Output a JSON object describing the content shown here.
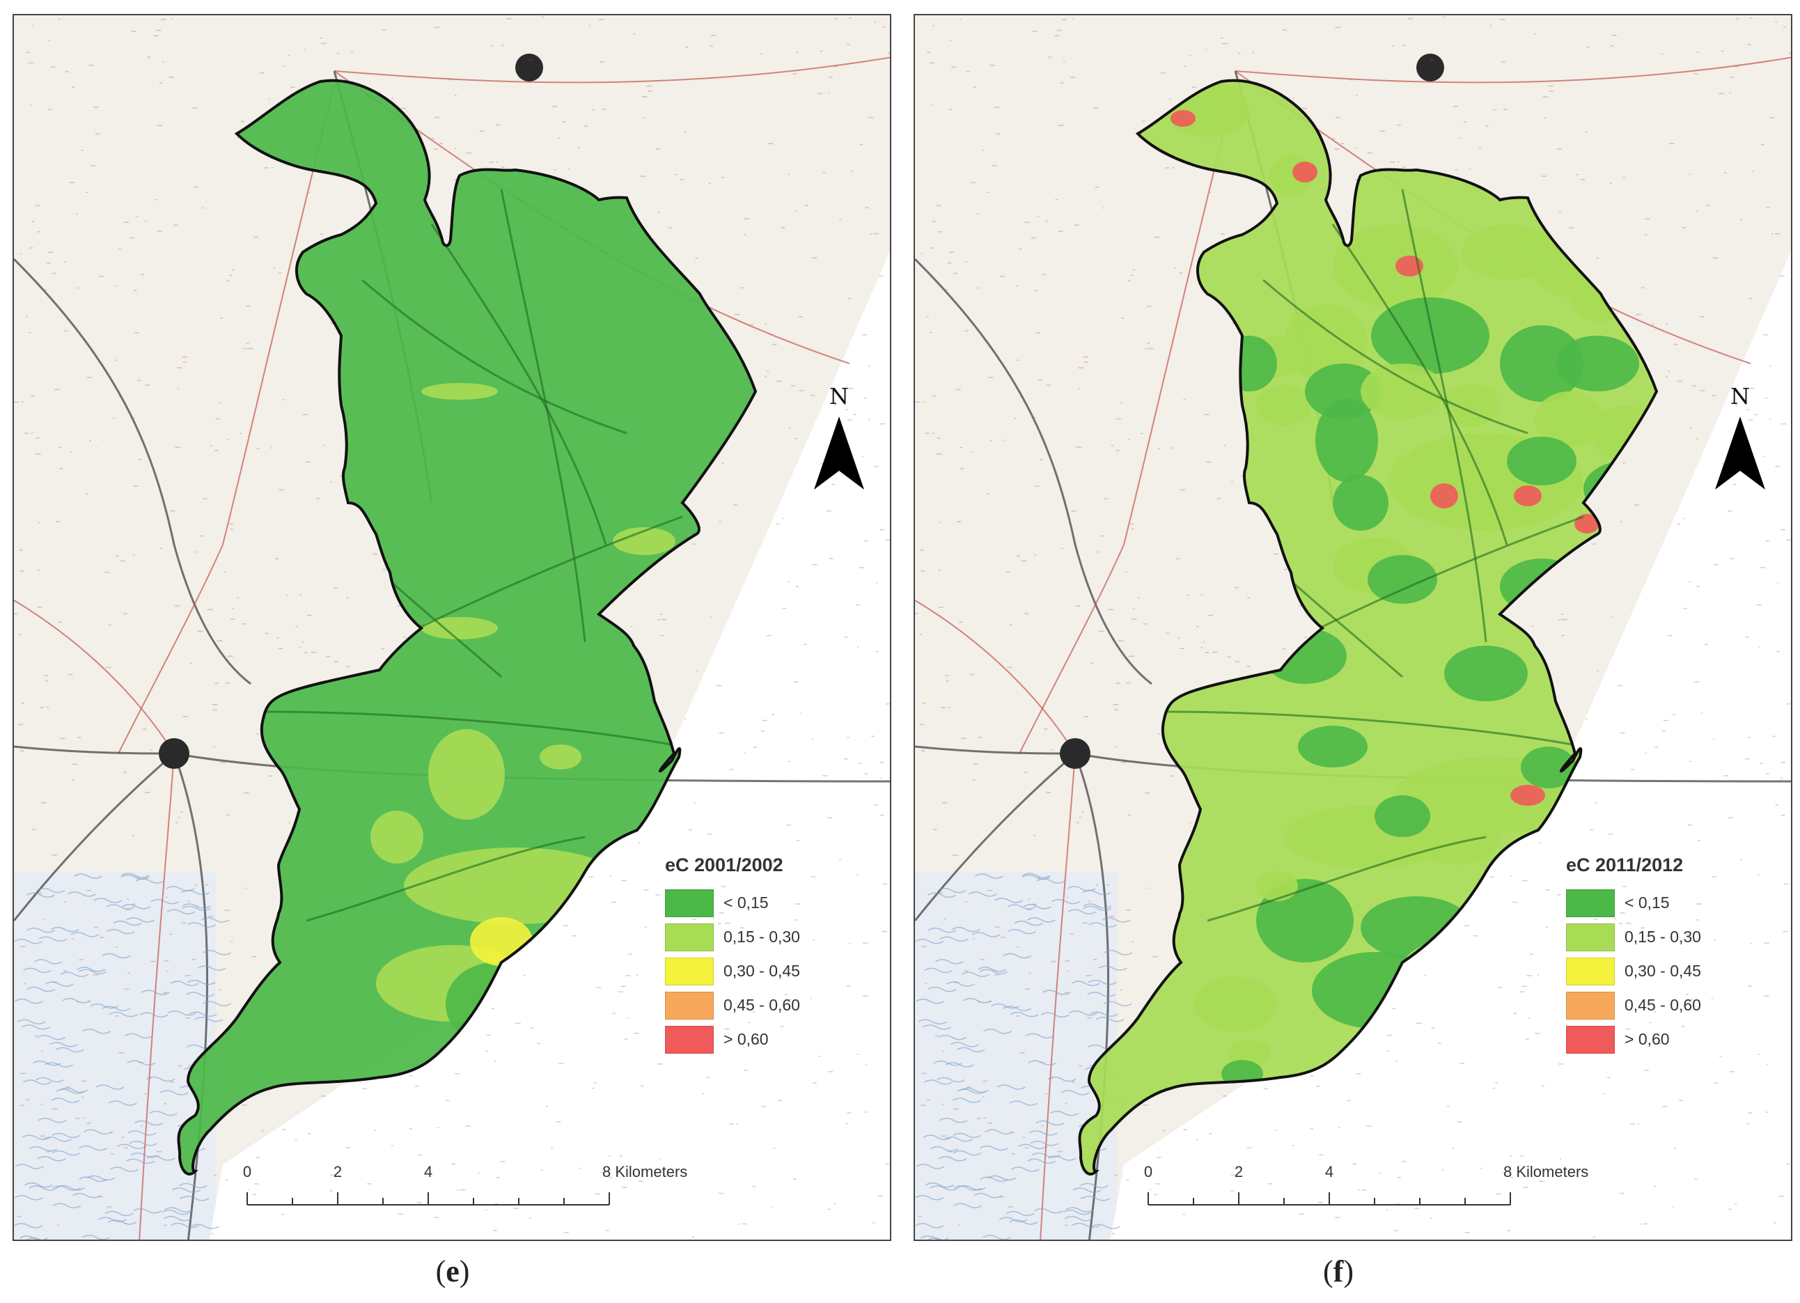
{
  "colors": {
    "class1": "#4cb848",
    "class2": "#a8dc55",
    "class3": "#f4f23c",
    "class4": "#f7a85a",
    "class5": "#ef5a5a",
    "basemap": "#f3efe9",
    "road_red": "#c2564c",
    "road_dark": "#3a3a3a",
    "water_blue": "#7aa0c8"
  },
  "north_arrow": {
    "letter": "N"
  },
  "scale_bar": {
    "ticks": [
      "0",
      "2",
      "4",
      "8 Kilometers"
    ]
  },
  "panels": [
    {
      "id": "e",
      "legend": {
        "title": "eC 2001/2002",
        "items": [
          {
            "label": "< 0,15",
            "color": "#4cb848"
          },
          {
            "label": "0,15 - 0,30",
            "color": "#a8dc55"
          },
          {
            "label": "0,30 - 0,45",
            "color": "#f4f23c"
          },
          {
            "label": "0,45 - 0,60",
            "color": "#f7a85a"
          },
          {
            "label": "> 0,60",
            "color": "#ef5a5a"
          }
        ]
      },
      "caption": {
        "open": "(",
        "letter": "e",
        "close": ")"
      }
    },
    {
      "id": "f",
      "legend": {
        "title": "eC 2011/2012",
        "items": [
          {
            "label": "< 0,15",
            "color": "#4cb848"
          },
          {
            "label": "0,15 - 0,30",
            "color": "#a8dc55"
          },
          {
            "label": "0,30 - 0,45",
            "color": "#f4f23c"
          },
          {
            "label": "0,45 - 0,60",
            "color": "#f7a85a"
          },
          {
            "label": "> 0,60",
            "color": "#ef5a5a"
          }
        ]
      },
      "caption": {
        "open": "(",
        "letter": "f",
        "close": ")"
      }
    }
  ]
}
